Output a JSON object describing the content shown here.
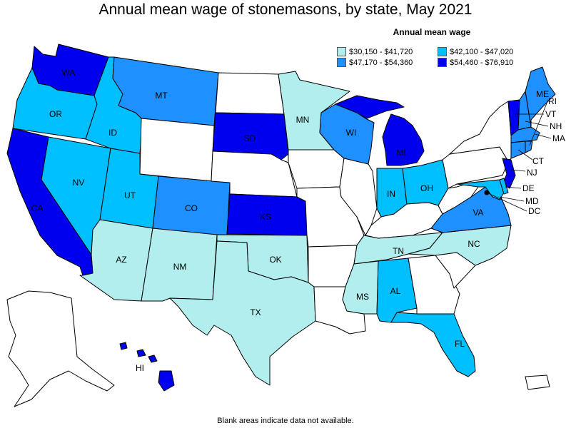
{
  "title": "Annual mean wage of stonemasons, by state, May 2021",
  "legend": {
    "title": "Annual mean wage",
    "bins": [
      {
        "label": "$30,150 - $41,720",
        "color": "#b2eeee"
      },
      {
        "label": "$42,100 - $47,020",
        "color": "#00bfff"
      },
      {
        "label": "$47,170 - $54,360",
        "color": "#1e90ff"
      },
      {
        "label": "$54,460 - $76,910",
        "color": "#0000ee"
      }
    ]
  },
  "no_data_color": "#ffffff",
  "footnote": "Blank areas indicate data not available.",
  "states": {
    "WA": {
      "label": "WA",
      "bin": 3
    },
    "OR": {
      "label": "OR",
      "bin": 1
    },
    "CA": {
      "label": "CA",
      "bin": 3
    },
    "NV": {
      "label": "NV",
      "bin": 1
    },
    "ID": {
      "label": "ID",
      "bin": 1
    },
    "MT": {
      "label": "MT",
      "bin": 2
    },
    "WY": {
      "label": "",
      "bin": null
    },
    "UT": {
      "label": "UT",
      "bin": 1
    },
    "CO": {
      "label": "CO",
      "bin": 2
    },
    "AZ": {
      "label": "AZ",
      "bin": 0
    },
    "NM": {
      "label": "NM",
      "bin": 0
    },
    "ND": {
      "label": "",
      "bin": null
    },
    "SD": {
      "label": "SD",
      "bin": 3
    },
    "NE": {
      "label": "",
      "bin": null
    },
    "KS": {
      "label": "KS",
      "bin": 3
    },
    "OK": {
      "label": "OK",
      "bin": 0
    },
    "TX": {
      "label": "TX",
      "bin": 0
    },
    "MN": {
      "label": "MN",
      "bin": 0
    },
    "IA": {
      "label": "",
      "bin": null
    },
    "MO": {
      "label": "",
      "bin": null
    },
    "AR": {
      "label": "",
      "bin": null
    },
    "LA": {
      "label": "",
      "bin": null
    },
    "WI": {
      "label": "WI",
      "bin": 2
    },
    "IL": {
      "label": "",
      "bin": null
    },
    "MI": {
      "label": "MI",
      "bin": 3
    },
    "IN": {
      "label": "IN",
      "bin": 1
    },
    "OH": {
      "label": "OH",
      "bin": 1
    },
    "KY": {
      "label": "",
      "bin": null
    },
    "TN": {
      "label": "TN",
      "bin": 0
    },
    "MS": {
      "label": "MS",
      "bin": 0
    },
    "AL": {
      "label": "AL",
      "bin": 1
    },
    "GA": {
      "label": "",
      "bin": null
    },
    "FL": {
      "label": "FL",
      "bin": 1
    },
    "SC": {
      "label": "",
      "bin": null
    },
    "NC": {
      "label": "NC",
      "bin": 0
    },
    "VA": {
      "label": "VA",
      "bin": 2
    },
    "WV": {
      "label": "",
      "bin": null
    },
    "PA": {
      "label": "",
      "bin": null
    },
    "NY": {
      "label": "",
      "bin": null
    },
    "NJ": {
      "label": "NJ",
      "bin": 3
    },
    "DE": {
      "label": "DE",
      "bin": 1
    },
    "MD": {
      "label": "MD",
      "bin": 1
    },
    "DC": {
      "label": "DC",
      "bin": 3
    },
    "CT": {
      "label": "CT",
      "bin": 2
    },
    "RI": {
      "label": "RI",
      "bin": 2
    },
    "MA": {
      "label": "MA",
      "bin": 2
    },
    "VT": {
      "label": "VT",
      "bin": 3
    },
    "NH": {
      "label": "NH",
      "bin": 2
    },
    "ME": {
      "label": "ME",
      "bin": 2
    },
    "AK": {
      "label": "",
      "bin": null
    },
    "HI": {
      "label": "HI",
      "bin": 3
    },
    "PR": {
      "label": "",
      "bin": null
    }
  }
}
